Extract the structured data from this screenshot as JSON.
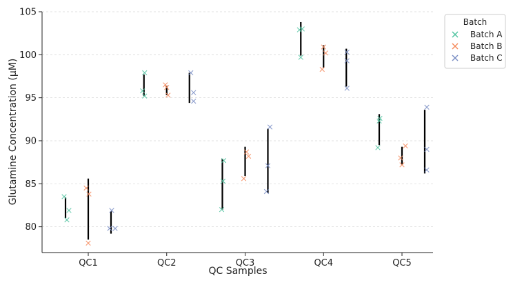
{
  "chart_data": {
    "type": "scatter",
    "title": "",
    "xlabel": "QC Samples",
    "ylabel": "Glutamine Concentration (µM)",
    "ylim": [
      77,
      105
    ],
    "yticks": [
      80,
      85,
      90,
      95,
      100,
      105
    ],
    "categories": [
      "QC1",
      "QC2",
      "QC3",
      "QC4",
      "QC5"
    ],
    "grid": "horizontal dashed",
    "legend": {
      "title": "Batch",
      "placement": "upper-right-outside"
    },
    "series": [
      {
        "name": "Batch A",
        "color": "#52c4a1",
        "offset": -0.33,
        "points": [
          [
            [
              83.5,
              -0.02
            ],
            [
              80.8,
              0.02
            ],
            [
              81.9,
              0.05
            ]
          ],
          [
            [
              95.8,
              -0.02
            ],
            [
              95.2,
              0.01
            ],
            [
              97.9,
              0.01
            ]
          ],
          [
            [
              82.0,
              -0.01
            ],
            [
              85.3,
              0.01
            ],
            [
              87.7,
              0.02
            ]
          ],
          [
            [
              102.9,
              -0.02
            ],
            [
              103.0,
              0.02
            ],
            [
              99.7,
              0.0
            ]
          ],
          [
            [
              89.2,
              -0.02
            ],
            [
              92.3,
              0.0
            ],
            [
              92.6,
              0.01
            ]
          ]
        ],
        "error_bars": [
          [
            81.0,
            83.4
          ],
          [
            95.2,
            97.7
          ],
          [
            82.0,
            87.9
          ],
          [
            99.9,
            103.8
          ],
          [
            89.5,
            93.1
          ]
        ]
      },
      {
        "name": "Batch B",
        "color": "#f58b5e",
        "offset": 0.0,
        "points": [
          [
            [
              84.5,
              -0.03
            ],
            [
              83.8,
              0.01
            ],
            [
              78.1,
              0.0
            ]
          ],
          [
            [
              96.5,
              -0.02
            ],
            [
              96.2,
              0.0
            ],
            [
              95.3,
              0.02
            ]
          ],
          [
            [
              85.6,
              -0.02
            ],
            [
              88.7,
              0.02
            ],
            [
              88.2,
              0.05
            ]
          ],
          [
            [
              98.3,
              -0.02
            ],
            [
              100.9,
              0.0
            ],
            [
              100.2,
              0.03
            ]
          ],
          [
            [
              88.0,
              -0.02
            ],
            [
              87.2,
              0.0
            ],
            [
              89.4,
              0.05
            ]
          ]
        ],
        "error_bars": [
          [
            78.5,
            85.6
          ],
          [
            95.3,
            96.4
          ],
          [
            85.9,
            89.3
          ],
          [
            98.5,
            101.1
          ],
          [
            87.2,
            89.3
          ]
        ]
      },
      {
        "name": "Batch C",
        "color": "#7b8fc5",
        "offset": 0.33,
        "points": [
          [
            [
              79.8,
              -0.02
            ],
            [
              81.9,
              0.01
            ],
            [
              79.8,
              0.06
            ]
          ],
          [
            [
              97.9,
              0.02
            ],
            [
              95.6,
              0.06
            ],
            [
              94.6,
              0.06
            ]
          ],
          [
            [
              84.1,
              -0.02
            ],
            [
              87.1,
              0.0
            ],
            [
              91.6,
              0.03
            ]
          ],
          [
            [
              100.3,
              0.01
            ],
            [
              99.3,
              0.01
            ],
            [
              96.1,
              0.01
            ]
          ],
          [
            [
              93.9,
              0.03
            ],
            [
              89.0,
              0.03
            ],
            [
              86.6,
              0.03
            ]
          ]
        ],
        "error_bars": [
          [
            79.2,
            81.8
          ],
          [
            94.4,
            97.9
          ],
          [
            83.9,
            91.4
          ],
          [
            96.3,
            100.7
          ],
          [
            86.2,
            93.6
          ]
        ]
      }
    ]
  }
}
